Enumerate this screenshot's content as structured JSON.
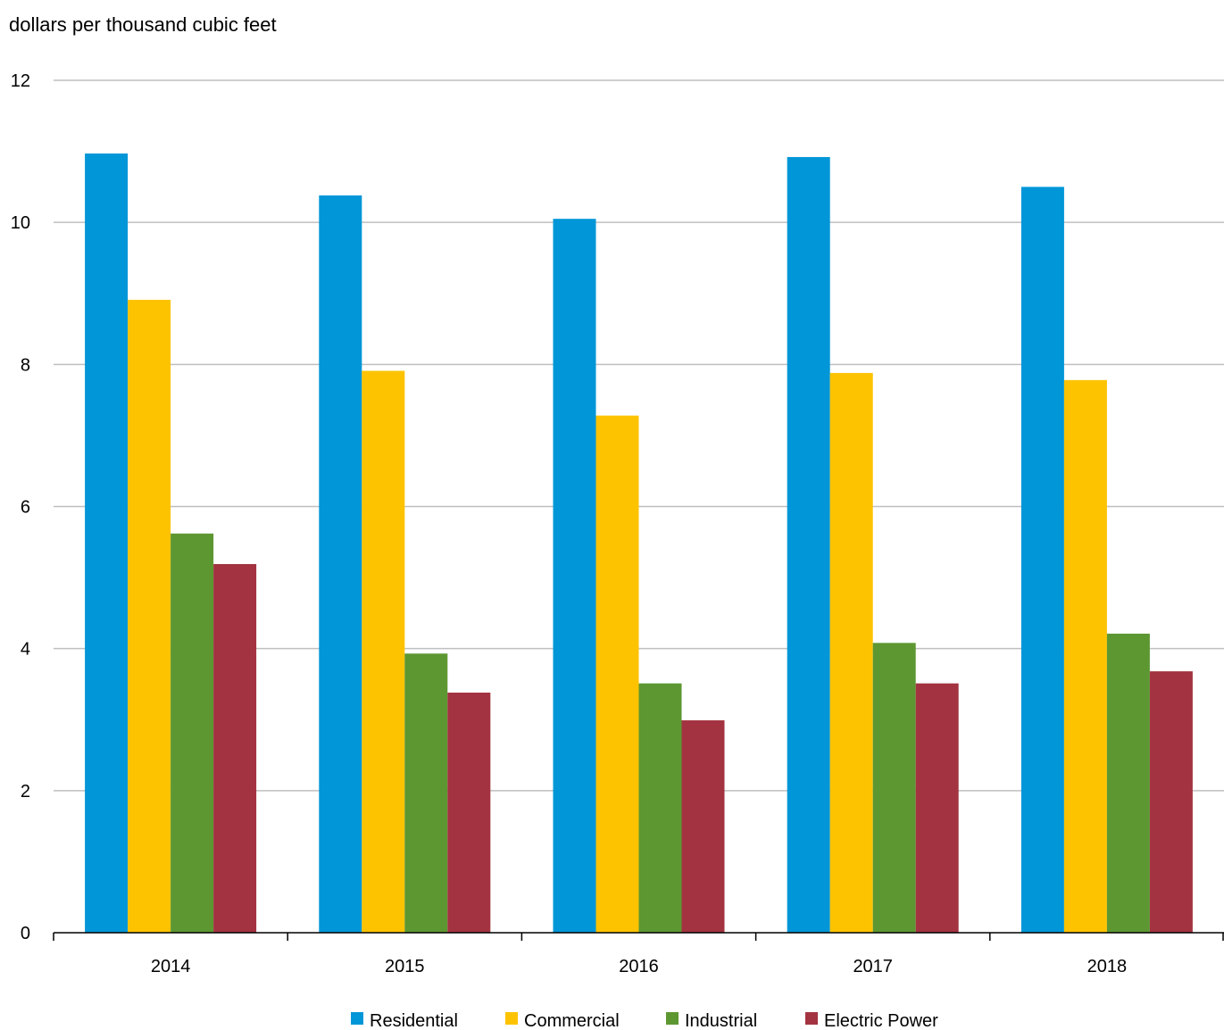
{
  "chart_data": {
    "type": "bar",
    "ylabel": "dollars per thousand cubic feet",
    "xlabel": "",
    "title": "",
    "categories": [
      "2014",
      "2015",
      "2016",
      "2017",
      "2018"
    ],
    "ylim": [
      0,
      12
    ],
    "yticks": [
      0,
      2,
      4,
      6,
      8,
      10,
      12
    ],
    "grid": true,
    "legend_position": "bottom",
    "series": [
      {
        "name": "Residential",
        "color": "#0096D7",
        "values": [
          10.97,
          10.38,
          10.05,
          10.92,
          10.5
        ]
      },
      {
        "name": "Commercial",
        "color": "#FDC300",
        "values": [
          8.91,
          7.91,
          7.28,
          7.88,
          7.78
        ]
      },
      {
        "name": "Industrial",
        "color": "#5D9732",
        "values": [
          5.62,
          3.93,
          3.51,
          4.08,
          4.21
        ]
      },
      {
        "name": "Electric Power",
        "color": "#A33340",
        "values": [
          5.19,
          3.38,
          2.99,
          3.51,
          3.68
        ]
      }
    ]
  }
}
